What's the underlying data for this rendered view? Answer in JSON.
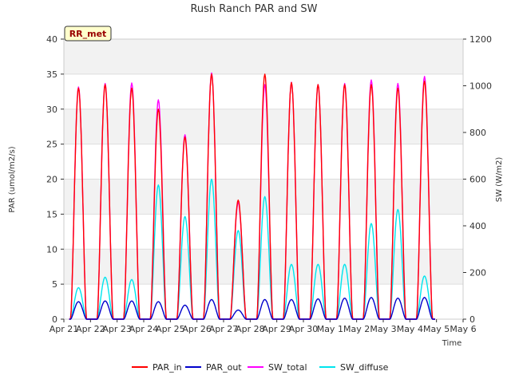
{
  "chart_data": {
    "type": "line",
    "title": "Rush Ranch PAR and SW",
    "badge": "RR_met",
    "xlabel": "Time",
    "ylabel_left": "PAR (umol/m2/s)",
    "ylabel_right": "SW (W/m2)",
    "ylim_left": [
      0,
      40
    ],
    "ylim_right": [
      0,
      1200
    ],
    "yticks_left": [
      "0",
      "5",
      "10",
      "15",
      "20",
      "25",
      "30",
      "35",
      "40"
    ],
    "yticks_right": [
      "0",
      "200",
      "400",
      "600",
      "800",
      "1000",
      "1200"
    ],
    "x_range_days": [
      0,
      15
    ],
    "x_tick_labels": [
      "Apr 21",
      "Apr 22",
      "Apr 23",
      "Apr 24",
      "Apr 25",
      "Apr 26",
      "Apr 27",
      "Apr 28",
      "Apr 29",
      "Apr 30",
      "May 1",
      "May 2",
      "May 3",
      "May 4",
      "May 5",
      "May 6"
    ],
    "day_start_offset": 0.25,
    "day_end_offset": 0.85,
    "series": [
      {
        "name": "PAR_in",
        "axis": "left",
        "color": "#ff0000",
        "daily_peak": [
          33.0,
          33.5,
          33.0,
          30.0,
          26.0,
          35.0,
          17.0,
          35.0,
          33.8,
          33.5,
          33.5,
          33.5,
          33.0,
          34.0
        ]
      },
      {
        "name": "PAR_out",
        "axis": "left",
        "color": "#0000cc",
        "daily_peak": [
          2.5,
          2.6,
          2.6,
          2.5,
          2.0,
          2.8,
          1.3,
          2.8,
          2.8,
          2.9,
          3.0,
          3.1,
          3.0,
          3.1
        ]
      },
      {
        "name": "SW_total",
        "axis": "right",
        "color": "#ff00ff",
        "daily_peak": [
          995,
          1010,
          1012,
          940,
          790,
          1055,
          500,
          1005,
          1015,
          1005,
          1010,
          1025,
          1010,
          1040
        ]
      },
      {
        "name": "SW_diffuse",
        "axis": "right",
        "color": "#00e5ee",
        "daily_peak": [
          135,
          180,
          170,
          575,
          440,
          600,
          380,
          525,
          235,
          235,
          235,
          410,
          470,
          185
        ]
      }
    ]
  }
}
